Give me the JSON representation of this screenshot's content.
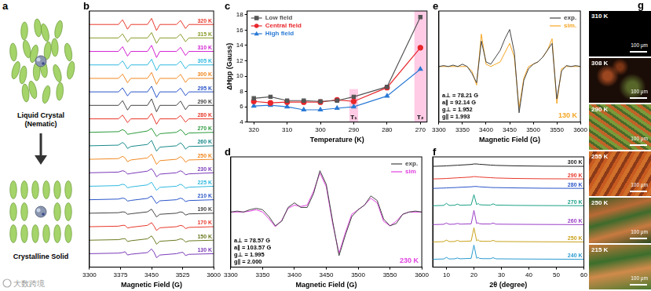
{
  "panel_a": {
    "panel": "a",
    "top_label": [
      "Liquid Crystal",
      "(Nematic)"
    ],
    "bottom_label": "Crystalline Solid"
  },
  "chart_data": [
    {
      "panel": "b",
      "type": "line",
      "x_label": "Magnetic Field (G)",
      "tick_labels": "x",
      "grid": false,
      "legend": "right",
      "xlim": [
        3300,
        3600
      ],
      "xticks": [
        3300,
        3375,
        3450,
        3525,
        3600
      ],
      "ylim": [
        0,
        19
      ],
      "x": [
        3300,
        3370,
        3380,
        3386,
        3392,
        3400,
        3440,
        3450,
        3456,
        3462,
        3470,
        3510,
        3520,
        3526,
        3532,
        3540,
        3600
      ],
      "series": [
        {
          "name": "320 K",
          "color": "#e8382b",
          "values": [
            18,
            18,
            18.35,
            18,
            17.65,
            18,
            18,
            18.45,
            18,
            17.55,
            18,
            18,
            18.3,
            18,
            17.7,
            18,
            18
          ]
        },
        {
          "name": "315 K",
          "color": "#8a9a2a",
          "values": [
            17,
            17,
            17.3,
            17,
            16.7,
            17,
            17,
            17.4,
            17,
            16.6,
            17,
            17,
            17.28,
            17,
            16.72,
            17,
            17
          ]
        },
        {
          "name": "310 K",
          "color": "#d01fd0",
          "values": [
            16,
            16,
            16.35,
            16,
            15.65,
            16,
            16,
            16.45,
            16,
            15.55,
            16,
            16,
            16.3,
            16,
            15.7,
            16,
            16
          ]
        },
        {
          "name": "305 K",
          "color": "#2fb9e0",
          "values": [
            15,
            15,
            15.3,
            15,
            14.7,
            15,
            15,
            15.42,
            15,
            14.58,
            15,
            15,
            15.28,
            15,
            14.72,
            15,
            15
          ]
        },
        {
          "name": "300 K",
          "color": "#f08a24",
          "values": [
            14,
            14,
            14.32,
            14,
            13.68,
            14,
            14,
            14.44,
            14,
            13.56,
            14,
            14,
            14.3,
            14,
            13.7,
            14,
            14
          ]
        },
        {
          "name": "295 K",
          "color": "#2a55c8",
          "values": [
            13,
            13,
            13.3,
            13,
            12.7,
            13,
            13,
            13.42,
            13,
            12.58,
            13,
            13,
            13.28,
            13,
            12.72,
            13,
            13
          ]
        },
        {
          "name": "290 K",
          "color": "#444444",
          "values": [
            12,
            12,
            12.35,
            12,
            11.65,
            12,
            12,
            12.48,
            12,
            11.52,
            12,
            12,
            12.32,
            12,
            11.68,
            12,
            12
          ]
        },
        {
          "name": "280 K",
          "color": "#e8382b",
          "values": [
            11,
            11,
            11.28,
            11,
            10.72,
            11,
            11,
            11.4,
            11,
            10.6,
            11,
            11,
            11.25,
            11,
            10.75,
            11,
            11
          ]
        },
        {
          "name": "270 K",
          "color": "#2a9a3a",
          "values": [
            10,
            10.05,
            10.2,
            10.1,
            9.85,
            9.9,
            10.1,
            10.3,
            10,
            9.7,
            9.9,
            10,
            10.2,
            10.05,
            9.8,
            9.95,
            10
          ]
        },
        {
          "name": "260 K",
          "color": "#1a8a8a",
          "values": [
            9,
            9.05,
            9.25,
            9.1,
            8.8,
            8.95,
            9.1,
            9.4,
            9,
            8.6,
            8.9,
            9,
            9.22,
            9.05,
            8.75,
            8.95,
            9
          ]
        },
        {
          "name": "250 K",
          "color": "#f08a24",
          "values": [
            8,
            8.05,
            8.22,
            8.1,
            7.82,
            7.95,
            8.1,
            8.38,
            8,
            7.62,
            7.9,
            8,
            8.2,
            8.05,
            7.78,
            7.95,
            8
          ]
        },
        {
          "name": "230 K",
          "color": "#7a3ab8",
          "values": [
            7,
            7.05,
            7.15,
            7.1,
            6.9,
            6.95,
            7.12,
            7.3,
            7.05,
            6.7,
            6.9,
            7,
            7.15,
            7.05,
            6.85,
            6.92,
            7
          ]
        },
        {
          "name": "225 K",
          "color": "#2fb9e0",
          "values": [
            6,
            6.05,
            6.15,
            6.1,
            5.88,
            5.95,
            6.1,
            6.3,
            6.0,
            5.7,
            5.92,
            6,
            6.15,
            6.05,
            5.85,
            5.93,
            6
          ]
        },
        {
          "name": "210 K",
          "color": "#2a55c8",
          "values": [
            5,
            5.05,
            5.12,
            5.08,
            4.9,
            4.95,
            5.1,
            5.28,
            5.0,
            4.72,
            4.92,
            5,
            5.12,
            5.05,
            4.86,
            4.94,
            5
          ]
        },
        {
          "name": "190 K",
          "color": "#444444",
          "values": [
            4,
            4.04,
            4.1,
            4.08,
            3.92,
            3.96,
            4.1,
            4.3,
            4.02,
            3.72,
            3.92,
            4,
            4.1,
            4.05,
            3.86,
            3.95,
            4
          ]
        },
        {
          "name": "170 K",
          "color": "#e8382b",
          "values": [
            3,
            3.04,
            3.1,
            3.1,
            2.9,
            2.96,
            3.1,
            3.3,
            3.05,
            2.72,
            2.92,
            3,
            3.1,
            3.05,
            2.86,
            2.95,
            3
          ]
        },
        {
          "name": "150 K",
          "color": "#6a7a20",
          "values": [
            2,
            2.04,
            2.1,
            2.12,
            1.9,
            1.96,
            2.1,
            2.32,
            2.05,
            1.7,
            1.92,
            2,
            2.1,
            2.05,
            1.86,
            1.95,
            2
          ]
        },
        {
          "name": "130 K",
          "color": "#7a3ab8",
          "values": [
            1,
            1.04,
            1.08,
            1.15,
            0.9,
            0.96,
            1.08,
            1.35,
            1.1,
            0.7,
            0.9,
            1,
            1.08,
            1.1,
            0.86,
            0.95,
            1
          ]
        }
      ]
    },
    {
      "panel": "c",
      "type": "line",
      "x_label": "Temperature (K)",
      "y_label": "ΔHpp (Gauss)",
      "grid": false,
      "legend": "upper left",
      "xlim": [
        322,
        268
      ],
      "xticks": [
        320,
        310,
        300,
        290,
        280,
        270
      ],
      "ylim": [
        4,
        18.5
      ],
      "yticks": [
        4,
        6,
        8,
        10,
        12,
        14,
        16,
        18
      ],
      "x": [
        320,
        315,
        310,
        305,
        300,
        295,
        290,
        280,
        270
      ],
      "series": [
        {
          "name": "Low field",
          "color": "#555555",
          "marker": "square",
          "values": [
            7.1,
            7.3,
            6.8,
            6.8,
            6.7,
            6.8,
            7.3,
            8.6,
            17.7
          ]
        },
        {
          "name": "Central field",
          "color": "#e8262b",
          "marker": "circle",
          "values": [
            6.7,
            6.5,
            6.6,
            6.6,
            6.6,
            6.9,
            6.7,
            8.5,
            13.7
          ]
        },
        {
          "name": "High field",
          "color": "#2a7ad5",
          "marker": "triangle",
          "values": [
            6.1,
            6.2,
            6.0,
            5.6,
            5.6,
            5.8,
            6.0,
            7.4,
            10.9
          ]
        }
      ],
      "bands": [
        {
          "x": [
            291.3,
            288.7
          ],
          "y": [
            4,
            8.3
          ],
          "label": "T₁"
        },
        {
          "x": [
            271.8,
            268.2
          ],
          "y": [
            4,
            18.5
          ],
          "label": "T₂"
        }
      ]
    },
    {
      "panel": "d",
      "type": "line",
      "x_label": "Magnetic Field (G)",
      "tick_labels": "x",
      "grid": false,
      "legend": "upper right",
      "xlim": [
        3300,
        3600
      ],
      "xticks": [
        3300,
        3350,
        3400,
        3450,
        3500,
        3550,
        3600
      ],
      "ylim": [
        -1.2,
        1.2
      ],
      "x": [
        3300,
        3310,
        3320,
        3330,
        3340,
        3350,
        3360,
        3370,
        3380,
        3390,
        3400,
        3410,
        3420,
        3430,
        3440,
        3450,
        3460,
        3470,
        3480,
        3490,
        3500,
        3510,
        3520,
        3530,
        3540,
        3550,
        3560,
        3570,
        3580,
        3590,
        3600
      ],
      "series": [
        {
          "name": "exp.",
          "color": "#444444",
          "values": [
            0,
            0.02,
            0,
            0.05,
            0.08,
            0.05,
            -0.1,
            -0.3,
            -0.2,
            0.1,
            0.2,
            0.1,
            0.1,
            0.4,
            0.9,
            0.6,
            -0.2,
            -0.95,
            -0.5,
            -0.1,
            0.05,
            0.15,
            0.35,
            0.25,
            -0.15,
            -0.3,
            -0.25,
            -0.05,
            0,
            0.02,
            0
          ]
        },
        {
          "name": "sim",
          "color": "#e040e0",
          "values": [
            0,
            0,
            0,
            0.02,
            0.05,
            0,
            -0.15,
            -0.32,
            -0.18,
            0.08,
            0.15,
            0.12,
            0.15,
            0.45,
            0.85,
            0.55,
            -0.25,
            -0.9,
            -0.45,
            -0.05,
            0.05,
            0.15,
            0.3,
            0.2,
            -0.2,
            -0.3,
            -0.2,
            -0.05,
            0,
            0,
            0
          ]
        }
      ],
      "parameters": [
        "a⊥ = 78.57 G",
        "a∥ = 103.57 G",
        "g⊥ = 1.995",
        "g∥ = 2.000"
      ],
      "annotation": "230 K"
    },
    {
      "panel": "e",
      "type": "line",
      "x_label": "Magnetic Field (G)",
      "tick_labels": "x",
      "grid": false,
      "legend": "upper right",
      "xlim": [
        3300,
        3600
      ],
      "xticks": [
        3300,
        3350,
        3400,
        3450,
        3500,
        3550,
        3600
      ],
      "ylim": [
        -1.2,
        1.2
      ],
      "x": [
        3300,
        3310,
        3320,
        3330,
        3340,
        3350,
        3360,
        3370,
        3380,
        3390,
        3400,
        3410,
        3420,
        3430,
        3440,
        3450,
        3460,
        3470,
        3480,
        3490,
        3500,
        3510,
        3520,
        3530,
        3540,
        3550,
        3560,
        3570,
        3580,
        3590,
        3600
      ],
      "series": [
        {
          "name": "exp.",
          "color": "#444444",
          "values": [
            0,
            0.02,
            0,
            0.03,
            0,
            0.05,
            0,
            -0.15,
            -0.35,
            0.55,
            0.1,
            0.05,
            0.2,
            0.35,
            0.6,
            0.8,
            0.3,
            -1.0,
            -0.3,
            -0.05,
            0.05,
            0.1,
            0.2,
            0.35,
            0.5,
            -0.7,
            -0.1,
            0.02,
            0,
            0.02,
            0
          ]
        },
        {
          "name": "sim.",
          "color": "#f5a623",
          "values": [
            0,
            0,
            0,
            0,
            0,
            0,
            0,
            -0.1,
            -0.4,
            0.7,
            0.05,
            0,
            0.05,
            0.1,
            0.3,
            0.5,
            0.2,
            -0.9,
            -0.25,
            0,
            0.05,
            0.1,
            0.2,
            0.35,
            0.6,
            -0.8,
            -0.05,
            0,
            0,
            0,
            0
          ]
        }
      ],
      "parameters": [
        "a⊥ = 78.21 G",
        "a∥ = 92.14 G",
        "g⊥ = 1.952",
        "g∥ = 1.993"
      ],
      "annotation": "130 K"
    },
    {
      "panel": "f",
      "type": "line",
      "x_label": "2θ (degree)",
      "tick_labels": "x",
      "grid": false,
      "legend": "right",
      "xlim": [
        5,
        60
      ],
      "xticks": [
        10,
        20,
        30,
        40,
        50,
        60
      ],
      "ylim": [
        0,
        7
      ],
      "x": [
        5,
        9,
        10,
        11,
        13,
        14,
        15,
        19,
        20,
        21,
        21.5,
        22,
        23,
        26,
        27,
        28,
        35,
        45,
        60
      ],
      "series": [
        {
          "name": "300 K",
          "color": "#222222",
          "values": [
            6.4,
            6.42,
            6.43,
            6.44,
            6.46,
            6.47,
            6.48,
            6.52,
            6.55,
            6.55,
            6.54,
            6.53,
            6.52,
            6.48,
            6.47,
            6.46,
            6.43,
            6.41,
            6.4
          ]
        },
        {
          "name": "290 K",
          "color": "#e8382b",
          "values": [
            5.6,
            5.62,
            5.63,
            5.64,
            5.66,
            5.67,
            5.68,
            5.72,
            5.75,
            5.74,
            5.73,
            5.72,
            5.71,
            5.68,
            5.67,
            5.66,
            5.63,
            5.61,
            5.6
          ]
        },
        {
          "name": "280 K",
          "color": "#2a55c8",
          "values": [
            5.0,
            5.02,
            5.03,
            5.04,
            5.05,
            5.06,
            5.07,
            5.1,
            5.12,
            5.12,
            5.11,
            5.1,
            5.09,
            5.06,
            5.05,
            5.05,
            5.03,
            5.01,
            5.0
          ]
        },
        {
          "name": "270 K",
          "color": "#1aa088",
          "values": [
            3.9,
            3.92,
            4.05,
            3.92,
            3.93,
            4.0,
            3.93,
            3.95,
            4.6,
            3.96,
            4.05,
            3.97,
            3.95,
            3.94,
            4.02,
            3.94,
            3.92,
            3.91,
            3.9
          ]
        },
        {
          "name": "260 K",
          "color": "#9b3fc8",
          "values": [
            2.7,
            2.72,
            2.8,
            2.72,
            2.73,
            2.78,
            2.73,
            2.75,
            3.6,
            2.76,
            2.82,
            2.76,
            2.74,
            2.74,
            2.8,
            2.73,
            2.72,
            2.71,
            2.7
          ]
        },
        {
          "name": "250 K",
          "color": "#c9a21a",
          "values": [
            1.6,
            1.62,
            1.72,
            1.62,
            1.63,
            1.7,
            1.63,
            1.66,
            2.5,
            1.66,
            1.74,
            1.66,
            1.64,
            1.64,
            1.7,
            1.63,
            1.62,
            1.61,
            1.6
          ]
        },
        {
          "name": "240 K",
          "color": "#2a9ad0",
          "values": [
            0.5,
            0.52,
            0.62,
            0.52,
            0.53,
            0.58,
            0.53,
            0.56,
            1.4,
            0.56,
            0.62,
            0.56,
            0.54,
            0.54,
            0.6,
            0.53,
            0.52,
            0.51,
            0.5
          ]
        }
      ]
    }
  ],
  "panel_g": {
    "panel": "g",
    "images": [
      {
        "label": "310 K",
        "scale_bar": "100 μm"
      },
      {
        "label": "308 K",
        "scale_bar": "100 μm"
      },
      {
        "label": "290 K",
        "scale_bar": "100 μm"
      },
      {
        "label": "255 K",
        "scale_bar": "100 μm"
      },
      {
        "label": "250 K",
        "scale_bar": "100 μm"
      },
      {
        "label": "215 K",
        "scale_bar": "100 μm"
      }
    ]
  },
  "watermark": "大数跨境"
}
